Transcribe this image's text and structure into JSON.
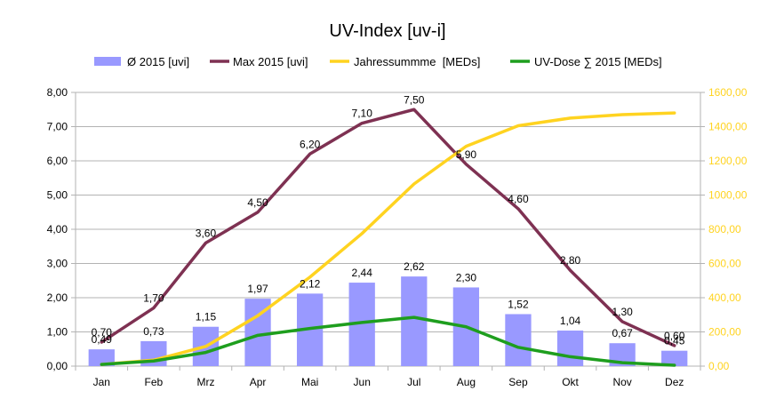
{
  "chart_data": {
    "type": "bar",
    "title": "UV-Index [uv-i]",
    "categories": [
      "Jan",
      "Feb",
      "Mrz",
      "Apr",
      "Mai",
      "Jun",
      "Jul",
      "Aug",
      "Sep",
      "Okt",
      "Nov",
      "Dez"
    ],
    "y_left": {
      "ylim": [
        0,
        8
      ],
      "ticks": [
        0,
        1,
        2,
        3,
        4,
        5,
        6,
        7,
        8
      ],
      "tick_labels": [
        "0,00",
        "1,00",
        "2,00",
        "3,00",
        "4,00",
        "5,00",
        "6,00",
        "7,00",
        "8,00"
      ]
    },
    "y_right": {
      "ylim": [
        0,
        1600
      ],
      "ticks": [
        0,
        200,
        400,
        600,
        800,
        1000,
        1200,
        1400,
        1600
      ],
      "tick_labels": [
        "0,00",
        "200,00",
        "400,00",
        "600,00",
        "800,00",
        "1000,00",
        "1200,00",
        "1400,00",
        "1600,00"
      ],
      "color": "#FFD320"
    },
    "grid": true,
    "legend_position": "top",
    "series": [
      {
        "name": "Ø 2015 [uvi]",
        "type": "bar",
        "axis": "left",
        "color": "#9999FF",
        "values": [
          0.49,
          0.73,
          1.15,
          1.97,
          2.12,
          2.44,
          2.62,
          2.3,
          1.52,
          1.04,
          0.67,
          0.45
        ],
        "labels": [
          "0,49",
          "0,73",
          "1,15",
          "1,97",
          "2,12",
          "2,44",
          "2,62",
          "2,30",
          "1,52",
          "1,04",
          "0,67",
          "0,45"
        ]
      },
      {
        "name": "Max 2015 [uvi]",
        "type": "line",
        "axis": "left",
        "color": "#7E3152",
        "values": [
          0.7,
          1.7,
          3.6,
          4.5,
          6.2,
          7.1,
          7.5,
          5.9,
          4.6,
          2.8,
          1.3,
          0.6
        ],
        "labels": [
          "0,70",
          "1,70",
          "3,60",
          "4,50",
          "6,20",
          "7,10",
          "7,50",
          "5,90",
          "4,60",
          "2,80",
          "1,30",
          "0,60"
        ]
      },
      {
        "name": "Jahressummme  [MEDs]",
        "type": "line",
        "axis": "right",
        "color": "#FFD320",
        "values": [
          10,
          35,
          115,
          295,
          520,
          775,
          1065,
          1285,
          1405,
          1450,
          1470,
          1480
        ]
      },
      {
        "name": "UV-Dose ∑ 2015 [MEDs]",
        "type": "line",
        "axis": "right",
        "color": "#1E9E1E",
        "values": [
          10,
          30,
          80,
          180,
          220,
          255,
          285,
          230,
          110,
          55,
          20,
          5
        ]
      }
    ]
  }
}
